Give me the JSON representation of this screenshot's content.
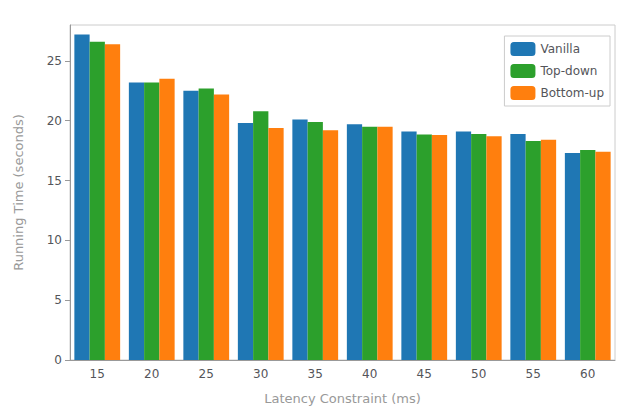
{
  "chart_data": {
    "type": "bar",
    "categories": [
      15,
      20,
      25,
      30,
      35,
      40,
      45,
      50,
      55,
      60
    ],
    "series": [
      {
        "name": "Vanilla",
        "color": "#1f77b4",
        "values": [
          27.2,
          23.2,
          22.5,
          19.8,
          20.1,
          19.7,
          19.1,
          19.1,
          18.9,
          17.3
        ]
      },
      {
        "name": "Top-down",
        "color": "#2ca02c",
        "values": [
          26.6,
          23.2,
          22.7,
          20.8,
          19.9,
          19.5,
          18.85,
          18.9,
          18.3,
          17.55
        ]
      },
      {
        "name": "Bottom-up",
        "color": "#ff7f0e",
        "values": [
          26.4,
          23.5,
          22.2,
          19.4,
          19.2,
          19.5,
          18.8,
          18.7,
          18.4,
          17.4
        ]
      }
    ],
    "xlabel": "Latency Constraint (ms)",
    "ylabel": "Running Time (seconds)",
    "ylim": [
      0,
      28
    ],
    "yticks": [
      0,
      5,
      10,
      15,
      20,
      25
    ],
    "grid": false,
    "legend": "upper right"
  }
}
